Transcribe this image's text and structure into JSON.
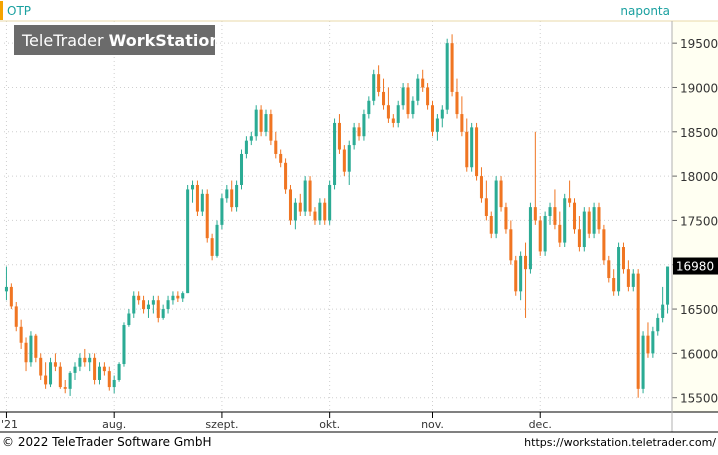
{
  "header": {
    "symbol": "OTP",
    "interval": "naponta",
    "watermark_light": "TeleTrader ",
    "watermark_bold": "WorkStation"
  },
  "footer": {
    "copyright": "© 2022 TeleTrader Software GmbH",
    "url": "https://workstation.teletrader.com/"
  },
  "colors": {
    "up": "#2bab94",
    "down": "#f07522",
    "accent": "#f5a300",
    "header_text": "#1aa0a0",
    "grid": "#cfcfcf",
    "price_bg": "#000000",
    "price_text": "#ffffff"
  },
  "chart_data": {
    "type": "candlestick",
    "last_price_label": "16980",
    "ylim": [
      15350,
      19750
    ],
    "y_ticks": [
      15500,
      16000,
      16500,
      17000,
      17500,
      18000,
      18500,
      19000,
      19500
    ],
    "x_labels": [
      {
        "label": "'21",
        "index": 0
      },
      {
        "label": "aug.",
        "index": 22
      },
      {
        "label": "szept.",
        "index": 44
      },
      {
        "label": "okt.",
        "index": 66
      },
      {
        "label": "nov.",
        "index": 87
      },
      {
        "label": "dec.",
        "index": 109
      }
    ],
    "candles": [
      [
        16700,
        16980,
        16600,
        16750
      ],
      [
        16750,
        16790,
        16500,
        16530
      ],
      [
        16530,
        16580,
        16250,
        16300
      ],
      [
        16300,
        16380,
        16050,
        16120
      ],
      [
        16120,
        16180,
        15800,
        15900
      ],
      [
        15900,
        16250,
        15850,
        16200
      ],
      [
        16200,
        16220,
        15900,
        15950
      ],
      [
        15950,
        16000,
        15700,
        15750
      ],
      [
        15750,
        15900,
        15600,
        15650
      ],
      [
        15650,
        15950,
        15620,
        15900
      ],
      [
        15900,
        16000,
        15800,
        15850
      ],
      [
        15850,
        15900,
        15600,
        15620
      ],
      [
        15620,
        15700,
        15550,
        15600
      ],
      [
        15600,
        15800,
        15520,
        15780
      ],
      [
        15780,
        15900,
        15700,
        15850
      ],
      [
        15850,
        16000,
        15800,
        15950
      ],
      [
        15950,
        16050,
        15850,
        15900
      ],
      [
        15900,
        16000,
        15800,
        15950
      ],
      [
        15950,
        16000,
        15650,
        15700
      ],
      [
        15700,
        15900,
        15650,
        15850
      ],
      [
        15850,
        15900,
        15750,
        15800
      ],
      [
        15800,
        15850,
        15580,
        15620
      ],
      [
        15620,
        15750,
        15550,
        15700
      ],
      [
        15700,
        15900,
        15680,
        15880
      ],
      [
        15880,
        16350,
        15850,
        16320
      ],
      [
        16320,
        16500,
        16300,
        16450
      ],
      [
        16450,
        16700,
        16400,
        16650
      ],
      [
        16650,
        16700,
        16550,
        16600
      ],
      [
        16600,
        16650,
        16450,
        16500
      ],
      [
        16500,
        16600,
        16400,
        16550
      ],
      [
        16550,
        16650,
        16450,
        16600
      ],
      [
        16600,
        16650,
        16350,
        16400
      ],
      [
        16400,
        16550,
        16380,
        16500
      ],
      [
        16500,
        16650,
        16450,
        16600
      ],
      [
        16600,
        16700,
        16550,
        16650
      ],
      [
        16650,
        16700,
        16580,
        16620
      ],
      [
        16620,
        16700,
        16580,
        16680
      ],
      [
        16680,
        17900,
        16680,
        17850
      ],
      [
        17850,
        17950,
        17700,
        17900
      ],
      [
        17900,
        17950,
        17550,
        17600
      ],
      [
        17600,
        17850,
        17550,
        17800
      ],
      [
        17800,
        17850,
        17250,
        17300
      ],
      [
        17300,
        17350,
        17050,
        17100
      ],
      [
        17100,
        17500,
        17080,
        17450
      ],
      [
        17450,
        17800,
        17400,
        17750
      ],
      [
        17750,
        17900,
        17700,
        17850
      ],
      [
        17850,
        17950,
        17600,
        17650
      ],
      [
        17650,
        17950,
        17600,
        17900
      ],
      [
        17900,
        18300,
        17850,
        18250
      ],
      [
        18250,
        18450,
        18200,
        18400
      ],
      [
        18400,
        18500,
        18350,
        18450
      ],
      [
        18450,
        18800,
        18400,
        18750
      ],
      [
        18750,
        18800,
        18450,
        18500
      ],
      [
        18500,
        18750,
        18450,
        18700
      ],
      [
        18700,
        18750,
        18350,
        18400
      ],
      [
        18400,
        18500,
        18200,
        18250
      ],
      [
        18250,
        18300,
        18100,
        18150
      ],
      [
        18150,
        18200,
        17800,
        17850
      ],
      [
        17850,
        17900,
        17450,
        17500
      ],
      [
        17500,
        17750,
        17400,
        17700
      ],
      [
        17700,
        17800,
        17550,
        17600
      ],
      [
        17600,
        18000,
        17550,
        17950
      ],
      [
        17950,
        18000,
        17550,
        17600
      ],
      [
        17600,
        17650,
        17450,
        17500
      ],
      [
        17500,
        17750,
        17450,
        17700
      ],
      [
        17700,
        17750,
        17450,
        17500
      ],
      [
        17500,
        17950,
        17450,
        17900
      ],
      [
        17900,
        18650,
        17850,
        18600
      ],
      [
        18600,
        18700,
        18250,
        18300
      ],
      [
        18300,
        18350,
        18000,
        18050
      ],
      [
        18050,
        18400,
        17900,
        18350
      ],
      [
        18350,
        18600,
        18300,
        18550
      ],
      [
        18550,
        18600,
        18400,
        18450
      ],
      [
        18450,
        18750,
        18400,
        18700
      ],
      [
        18700,
        18900,
        18650,
        18850
      ],
      [
        18850,
        19200,
        18800,
        19150
      ],
      [
        19150,
        19250,
        18900,
        18950
      ],
      [
        18950,
        19100,
        18750,
        18800
      ],
      [
        18800,
        19000,
        18600,
        18650
      ],
      [
        18650,
        18700,
        18550,
        18600
      ],
      [
        18600,
        18850,
        18550,
        18800
      ],
      [
        18800,
        19050,
        18750,
        19000
      ],
      [
        19000,
        19050,
        18650,
        18700
      ],
      [
        18700,
        18900,
        18650,
        18850
      ],
      [
        18850,
        19150,
        18800,
        19100
      ],
      [
        19100,
        19200,
        18950,
        19000
      ],
      [
        19000,
        19050,
        18750,
        18800
      ],
      [
        18800,
        18850,
        18450,
        18500
      ],
      [
        18500,
        18700,
        18400,
        18650
      ],
      [
        18650,
        18800,
        18550,
        18750
      ],
      [
        18750,
        19550,
        18700,
        19500
      ],
      [
        19500,
        19600,
        18900,
        18950
      ],
      [
        18950,
        19100,
        18650,
        18700
      ],
      [
        18700,
        18900,
        18450,
        18500
      ],
      [
        18500,
        18650,
        18050,
        18100
      ],
      [
        18100,
        18600,
        18050,
        18550
      ],
      [
        18550,
        18600,
        17950,
        18000
      ],
      [
        18000,
        18100,
        17700,
        17750
      ],
      [
        17750,
        17950,
        17500,
        17550
      ],
      [
        17550,
        17600,
        17300,
        17350
      ],
      [
        17350,
        18000,
        17300,
        17950
      ],
      [
        17950,
        18000,
        17600,
        17650
      ],
      [
        17650,
        17700,
        17350,
        17400
      ],
      [
        17400,
        17500,
        17000,
        17050
      ],
      [
        17050,
        17100,
        16650,
        16700
      ],
      [
        16700,
        17150,
        16600,
        17100
      ],
      [
        17100,
        17250,
        16400,
        16950
      ],
      [
        16950,
        17700,
        16900,
        17650
      ],
      [
        17650,
        18500,
        17450,
        17500
      ],
      [
        17500,
        17550,
        17100,
        17150
      ],
      [
        17150,
        17600,
        17100,
        17550
      ],
      [
        17550,
        17700,
        17450,
        17650
      ],
      [
        17650,
        17850,
        17400,
        17450
      ],
      [
        17450,
        17600,
        17200,
        17250
      ],
      [
        17250,
        17800,
        17200,
        17750
      ],
      [
        17750,
        17950,
        17650,
        17700
      ],
      [
        17700,
        17750,
        17350,
        17400
      ],
      [
        17400,
        17550,
        17150,
        17200
      ],
      [
        17200,
        17650,
        17150,
        17600
      ],
      [
        17600,
        17650,
        17300,
        17350
      ],
      [
        17350,
        17700,
        17300,
        17650
      ],
      [
        17650,
        17700,
        17350,
        17400
      ],
      [
        17400,
        17450,
        17000,
        17050
      ],
      [
        17050,
        17100,
        16800,
        16850
      ],
      [
        16850,
        16950,
        16650,
        16700
      ],
      [
        16700,
        17250,
        16650,
        17200
      ],
      [
        17200,
        17250,
        16900,
        16950
      ],
      [
        16950,
        17050,
        16700,
        16750
      ],
      [
        16750,
        16950,
        16700,
        16900
      ],
      [
        16900,
        16950,
        15500,
        15600
      ],
      [
        15600,
        16250,
        15550,
        16200
      ],
      [
        16200,
        16350,
        15950,
        16000
      ],
      [
        16000,
        16300,
        15950,
        16250
      ],
      [
        16250,
        16450,
        16200,
        16400
      ],
      [
        16400,
        16750,
        16350,
        16550
      ],
      [
        16550,
        16980,
        16450,
        16980
      ]
    ]
  }
}
